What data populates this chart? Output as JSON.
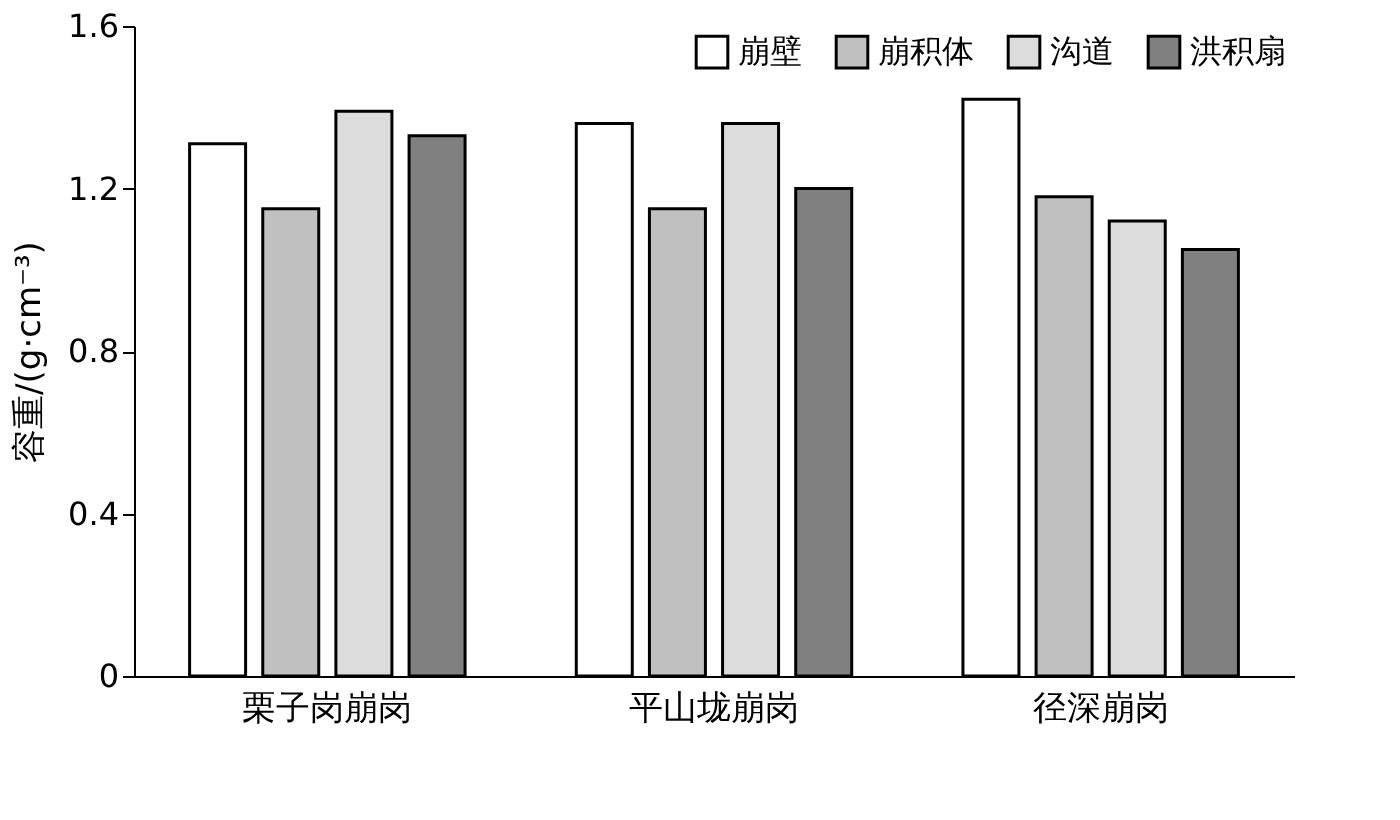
{
  "chart_data": {
    "type": "bar",
    "ylabel": "容重/(g·cm⁻³)",
    "categories": [
      "栗子岗崩岗",
      "平山垅崩岗",
      "径深崩岗"
    ],
    "series": [
      {
        "name": "崩壁",
        "color": "#ffffff",
        "values": [
          1.31,
          1.36,
          1.42
        ]
      },
      {
        "name": "崩积体",
        "color": "#c0c0c0",
        "values": [
          1.15,
          1.15,
          1.18
        ]
      },
      {
        "name": "沟道",
        "color": "#dcdcdc",
        "values": [
          1.39,
          1.36,
          1.12
        ]
      },
      {
        "name": "洪积扇",
        "color": "#808080",
        "values": [
          1.33,
          1.2,
          1.05
        ]
      }
    ],
    "ylim": [
      0,
      1.6
    ],
    "yticks": [
      0,
      0.4,
      0.8,
      1.2,
      1.6
    ],
    "grid": false,
    "legend": "top right"
  }
}
